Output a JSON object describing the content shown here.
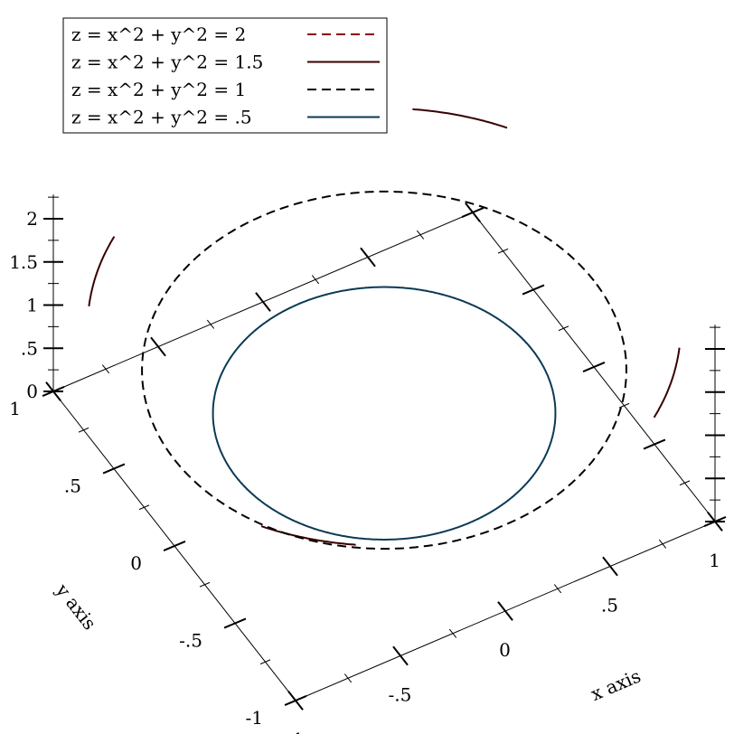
{
  "chart_data": {
    "type": "line",
    "projection": "3d",
    "x_axis": {
      "label": "x axis",
      "range": [
        -1,
        1
      ],
      "ticks": [
        {
          "value": -1,
          "label": "-1"
        },
        {
          "value": -0.5,
          "label": "-.5"
        },
        {
          "value": 0,
          "label": "0"
        },
        {
          "value": 0.5,
          "label": ".5"
        },
        {
          "value": 1,
          "label": "1"
        }
      ]
    },
    "y_axis": {
      "label": "y axis",
      "range": [
        -1,
        1
      ],
      "ticks": [
        {
          "value": -1,
          "label": "-1"
        },
        {
          "value": -0.5,
          "label": "-.5"
        },
        {
          "value": 0,
          "label": "0"
        },
        {
          "value": 0.5,
          "label": ".5"
        },
        {
          "value": 1,
          "label": "1"
        }
      ]
    },
    "z_axis": {
      "label": "",
      "range": [
        0,
        2
      ],
      "ticks": [
        {
          "value": 0,
          "label": "0"
        },
        {
          "value": 0.5,
          "label": ".5"
        },
        {
          "value": 1,
          "label": "1"
        },
        {
          "value": 1.5,
          "label": "1.5"
        },
        {
          "value": 2,
          "label": "2"
        }
      ]
    },
    "series": [
      {
        "name": "z = x^2 + y^2 = 2",
        "z": 2,
        "radius": 1.4142,
        "color": "#8b0000",
        "dash": "dashed"
      },
      {
        "name": "z = x^2 + y^2 = 1.5",
        "z": 1.5,
        "radius": 1.2247,
        "color": "#3a0000",
        "dash": "solid"
      },
      {
        "name": "z = x^2 + y^2 = 1",
        "z": 1,
        "radius": 1,
        "color": "#000000",
        "dash": "dashed"
      },
      {
        "name": "z = x^2 + y^2 = .5",
        "z": 0.5,
        "radius": 0.7071,
        "color": "#0a3a55",
        "dash": "solid"
      }
    ],
    "legend_position": "top-left",
    "grid": false
  }
}
